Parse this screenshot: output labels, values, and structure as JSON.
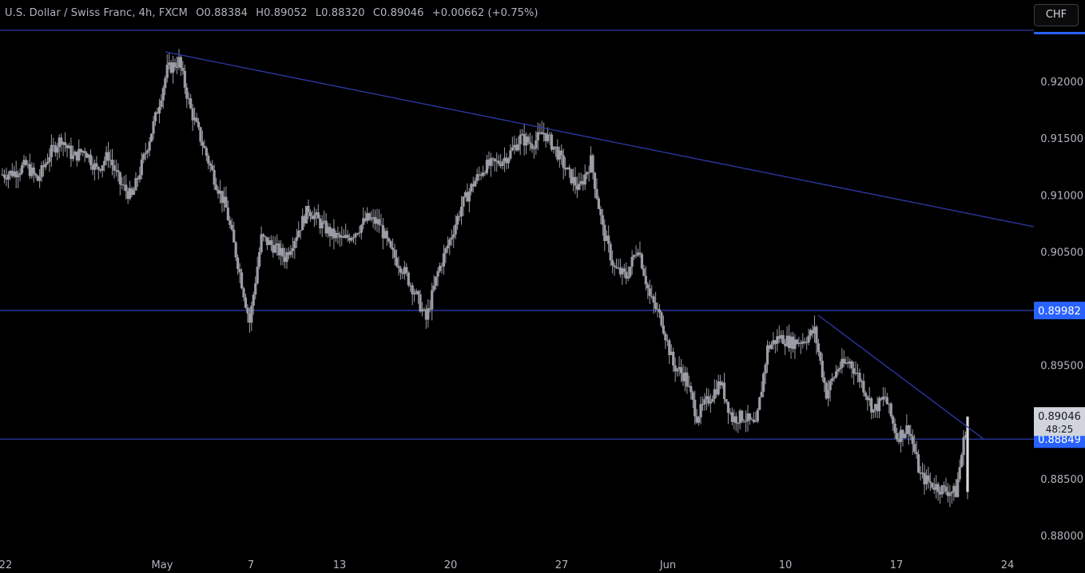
{
  "header": {
    "symbol": "U.S. Dollar / Swiss Franc, 4h, FXCM",
    "open": "O0.88384",
    "high": "H0.89052",
    "low": "L0.88320",
    "close": "C0.89046",
    "change": "+0.00662 (+0.75%)"
  },
  "currency_button": "CHF",
  "colors": {
    "background": "#000000",
    "candles": "#9a9da5",
    "trendlines": "#2e3aa8",
    "tag": "#2962ff",
    "text": "#b2b5be"
  },
  "chart_data": {
    "type": "candlestick",
    "x_tick_labels": [
      "22",
      "May",
      "7",
      "13",
      "20",
      "27",
      "Jun",
      "10",
      "17",
      "24"
    ],
    "y_tick_labels": [
      "0.92000",
      "0.91500",
      "0.91000",
      "0.90500",
      "0.89500",
      "0.88500",
      "0.88000"
    ],
    "ylim": [
      0.8785,
      0.9255
    ],
    "horizontal_levels": [
      {
        "label": "0.89982",
        "value": 0.89982
      },
      {
        "label": "0.88849",
        "value": 0.88849
      },
      {
        "value": 0.9245
      }
    ],
    "trendlines": [
      {
        "from": [
          "Apr 30",
          0.9226
        ],
        "to": [
          "Jun 23",
          0.9072
        ]
      },
      {
        "from": [
          "Jun 12",
          0.8994
        ],
        "to": [
          "Jun 22",
          0.8885
        ]
      }
    ],
    "last_price": {
      "label": "0.89046",
      "countdown": "48:25",
      "value": 0.89046
    },
    "series": [
      {
        "values": [
          0.9118,
          0.912,
          0.9126,
          0.9113,
          0.9136,
          0.915,
          0.9133,
          0.914,
          0.9122,
          0.9135,
          0.911,
          0.9098,
          0.9132,
          0.9168,
          0.921,
          0.9218,
          0.9175,
          0.9145,
          0.9115,
          0.9088,
          0.904,
          0.8988,
          0.9062,
          0.9055,
          0.9045,
          0.9066,
          0.9088,
          0.9075,
          0.9065,
          0.906,
          0.9068,
          0.9079,
          0.9075,
          0.905,
          0.9035,
          0.9015,
          0.899,
          0.9032,
          0.906,
          0.909,
          0.911,
          0.9125,
          0.9128,
          0.9135,
          0.915,
          0.9145,
          0.9155,
          0.914,
          0.912,
          0.9105,
          0.913,
          0.907,
          0.9035,
          0.9028,
          0.9055,
          0.901,
          0.899,
          0.895,
          0.894,
          0.8905,
          0.892,
          0.8935,
          0.8903,
          0.8905,
          0.8895,
          0.8965,
          0.8975,
          0.897,
          0.8972,
          0.898,
          0.8925,
          0.8948,
          0.8953,
          0.8935,
          0.891,
          0.8922,
          0.8887,
          0.8895,
          0.8852,
          0.8845,
          0.884,
          0.8838,
          0.8905
        ]
      }
    ]
  }
}
